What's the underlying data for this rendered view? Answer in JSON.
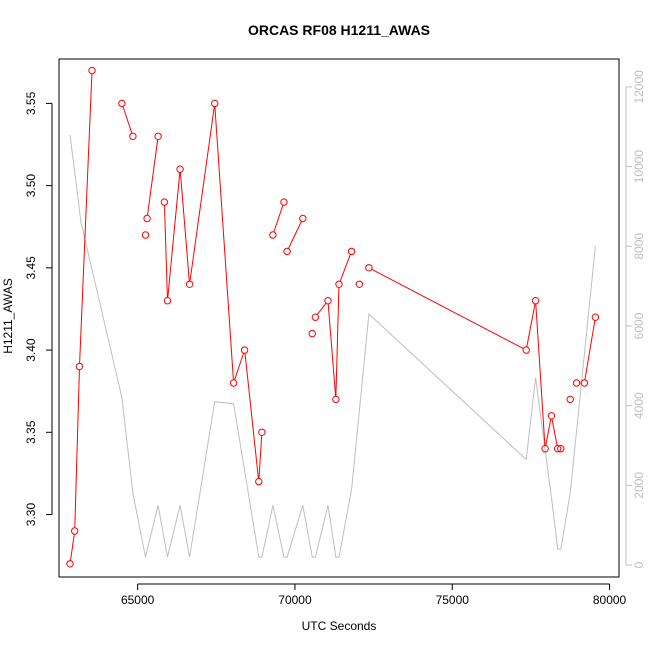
{
  "chart_data": {
    "type": "line",
    "title": "ORCAS RF08 H1211_AWAS",
    "xlabel": "UTC Seconds",
    "ylabel": "H1211_AWAS",
    "xlim": [
      62500,
      80300
    ],
    "ylim": [
      3.262,
      3.577
    ],
    "y2lim": [
      -300,
      12700
    ],
    "x_ticks": [
      65000,
      70000,
      75000,
      80000
    ],
    "y_ticks": [
      3.3,
      3.35,
      3.4,
      3.45,
      3.5,
      3.55
    ],
    "y2_ticks": [
      0,
      2000,
      4000,
      6000,
      8000,
      10000,
      12000
    ],
    "grid": false,
    "colors": {
      "primary": "#ff0000",
      "secondary": "#bebebe",
      "axis": "#000000",
      "secondary_axis": "#bebebe"
    },
    "series": [
      {
        "axis": "left",
        "marker": "open-circle",
        "x": [
          62850,
          63000,
          63150,
          63550,
          64500,
          64850,
          65250,
          65300,
          65650,
          65850,
          65950,
          66350,
          66650,
          67450,
          68050,
          68400,
          68850,
          68950,
          69300,
          69650,
          69750,
          70250,
          70550,
          70650,
          71050,
          71300,
          71400,
          71800,
          72050,
          72350,
          77350,
          77650,
          77950,
          78150,
          78350,
          78450,
          78750,
          78950,
          79200,
          79550
        ],
        "y": [
          3.27,
          3.29,
          3.39,
          3.57,
          3.55,
          3.53,
          3.47,
          3.48,
          3.53,
          3.49,
          3.43,
          3.51,
          3.44,
          3.55,
          3.38,
          3.4,
          3.32,
          3.35,
          3.47,
          3.49,
          3.46,
          3.48,
          3.41,
          3.42,
          3.43,
          3.37,
          3.44,
          3.46,
          3.44,
          3.45,
          3.4,
          3.43,
          3.34,
          3.36,
          3.34,
          3.34,
          3.37,
          3.38,
          3.38,
          3.42
        ],
        "breaks_after": [
          3,
          5,
          6,
          8,
          17,
          19,
          21,
          22,
          27,
          28,
          35,
          36
        ]
      },
      {
        "axis": "right",
        "x": [
          62850,
          63200,
          64500,
          64850,
          65250,
          65650,
          65950,
          66350,
          66650,
          67450,
          68050,
          68850,
          68950,
          69300,
          69650,
          69750,
          70250,
          70550,
          70650,
          71050,
          71300,
          71400,
          71800,
          72350,
          77350,
          77650,
          78150,
          78350,
          78450,
          78750,
          79550
        ],
        "y": [
          10800,
          8600,
          4200,
          1800,
          200,
          1500,
          200,
          1500,
          200,
          4100,
          4050,
          200,
          200,
          1500,
          200,
          200,
          1500,
          200,
          200,
          1500,
          200,
          200,
          1900,
          6300,
          2650,
          4700,
          1700,
          400,
          400,
          1800,
          8000
        ]
      }
    ]
  }
}
